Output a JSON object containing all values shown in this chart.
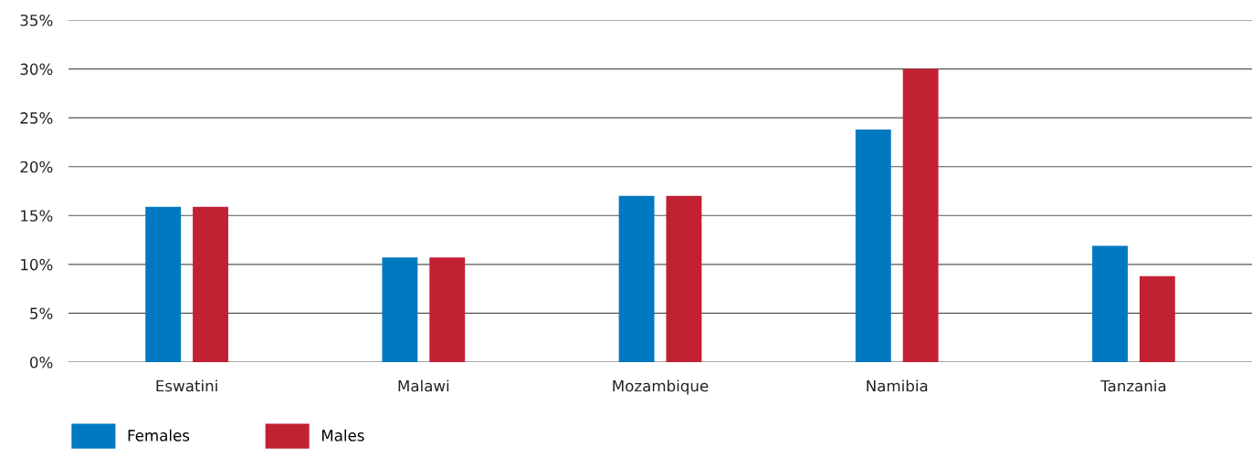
{
  "chart_data": {
    "type": "bar",
    "categories": [
      "Eswatini",
      "Malawi",
      "Mozambique",
      "Namibia",
      "Tanzania"
    ],
    "series": [
      {
        "name": "Females",
        "color": "#0079c1",
        "values": [
          15.9,
          10.7,
          17.0,
          23.8,
          11.9
        ]
      },
      {
        "name": "Males",
        "color": "#c22033",
        "values": [
          15.9,
          10.7,
          17.0,
          30.0,
          8.8
        ]
      }
    ],
    "ylim": [
      0,
      35
    ],
    "yticks": [
      {
        "value": 0,
        "label": "0%"
      },
      {
        "value": 5,
        "label": "5%"
      },
      {
        "value": 10,
        "label": "10%"
      },
      {
        "value": 15,
        "label": "15%"
      },
      {
        "value": 20,
        "label": "20%"
      },
      {
        "value": 25,
        "label": "25%"
      },
      {
        "value": 30,
        "label": "30%"
      },
      {
        "value": 35,
        "label": "35%"
      }
    ],
    "grid": "y",
    "legend": "bottom left"
  }
}
